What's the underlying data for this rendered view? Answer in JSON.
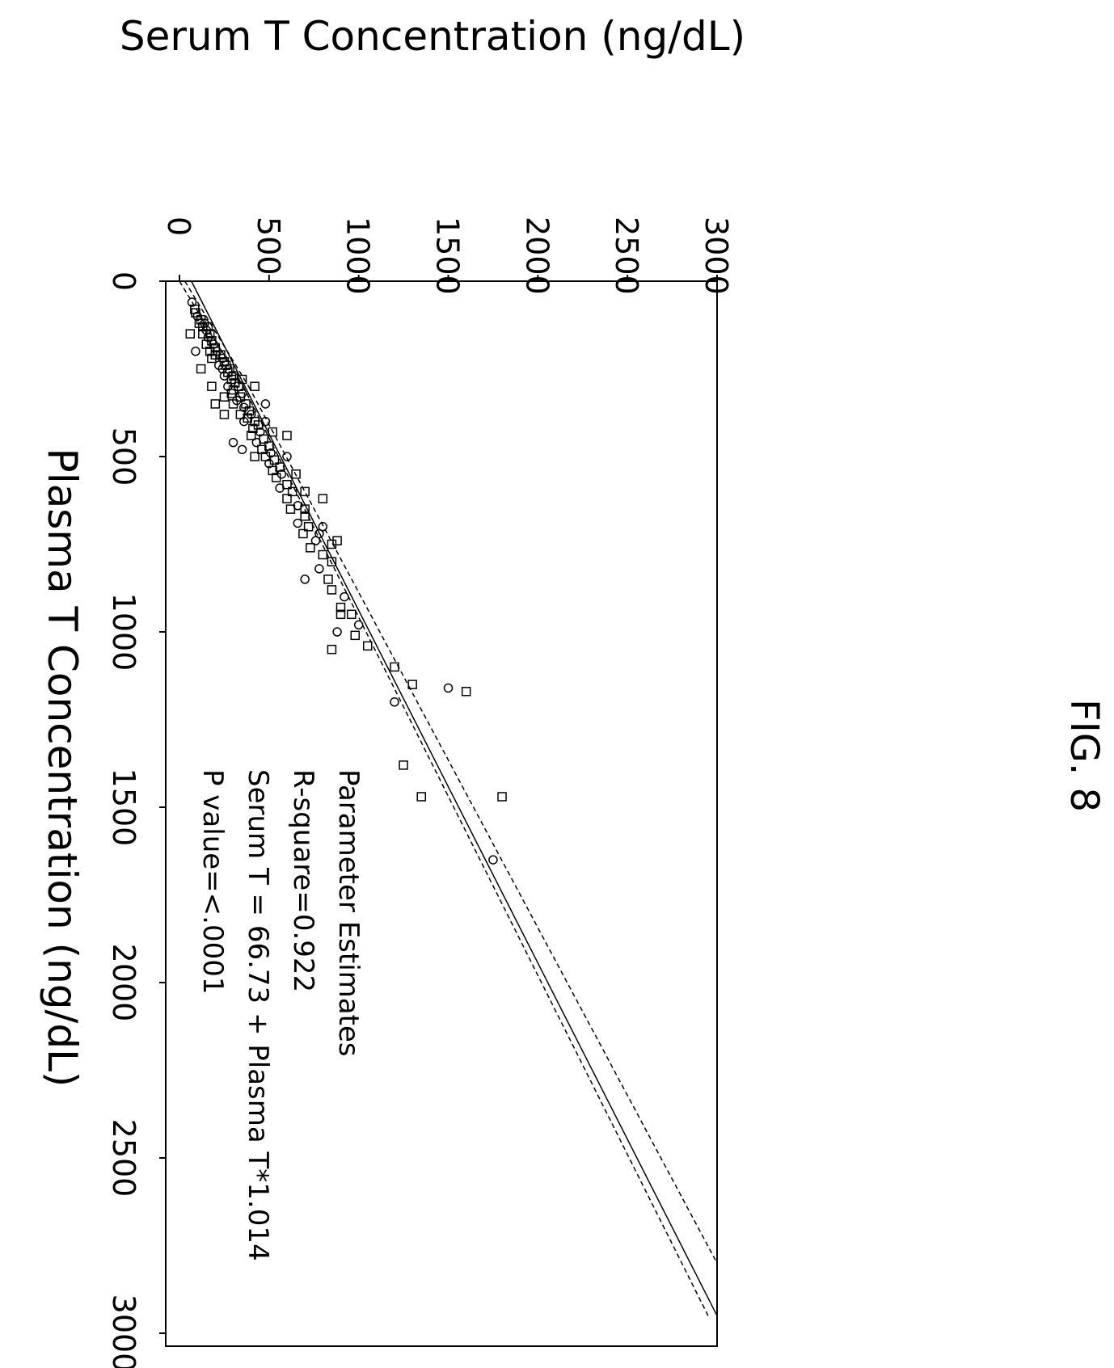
{
  "figure_label": "FIG. 8",
  "chart_data": {
    "type": "scatter",
    "orientation": "rotated 90° clockwise on the page",
    "title": "",
    "xlabel": "Plasma T Concentration (ng/dL)",
    "ylabel": "Serum T Concentration (ng/dL)",
    "xlim": [
      0,
      3000
    ],
    "ylim": [
      0,
      3000
    ],
    "x_ticks": [
      "0",
      "500",
      "1000",
      "1500",
      "2000",
      "2500",
      "3000"
    ],
    "y_ticks": [
      "0",
      "500",
      "1000",
      "1500",
      "2000",
      "2500",
      "3000"
    ],
    "grid": false,
    "legend": "none",
    "annotation": {
      "lines": [
        "Parameter Estimates",
        "R-square=0.922",
        "Serum T = 66.73 + Plasma T*1.014",
        "P value=<.0001"
      ]
    },
    "regression": {
      "intercept": 66.73,
      "slope": 1.014,
      "x_range": [
        0,
        2950
      ]
    },
    "confidence_band": {
      "lower_end": [
        2950,
        2950
      ],
      "upper_end": [
        2800,
        3000
      ],
      "pivot_x": 300
    },
    "points": [
      [
        60,
        70
      ],
      [
        80,
        85
      ],
      [
        90,
        90
      ],
      [
        100,
        100
      ],
      [
        110,
        120
      ],
      [
        120,
        110
      ],
      [
        120,
        140
      ],
      [
        130,
        130
      ],
      [
        130,
        160
      ],
      [
        140,
        150
      ],
      [
        150,
        130
      ],
      [
        150,
        170
      ],
      [
        160,
        160
      ],
      [
        170,
        180
      ],
      [
        180,
        150
      ],
      [
        180,
        190
      ],
      [
        190,
        200
      ],
      [
        200,
        170
      ],
      [
        200,
        210
      ],
      [
        210,
        230
      ],
      [
        210,
        200
      ],
      [
        220,
        240
      ],
      [
        220,
        180
      ],
      [
        230,
        250
      ],
      [
        240,
        220
      ],
      [
        240,
        260
      ],
      [
        250,
        280
      ],
      [
        250,
        240
      ],
      [
        260,
        270
      ],
      [
        270,
        300
      ],
      [
        270,
        250
      ],
      [
        280,
        290
      ],
      [
        290,
        310
      ],
      [
        300,
        270
      ],
      [
        300,
        330
      ],
      [
        310,
        300
      ],
      [
        320,
        350
      ],
      [
        320,
        290
      ],
      [
        330,
        340
      ],
      [
        340,
        320
      ],
      [
        350,
        370
      ],
      [
        350,
        300
      ],
      [
        360,
        360
      ],
      [
        370,
        390
      ],
      [
        380,
        340
      ],
      [
        380,
        400
      ],
      [
        390,
        380
      ],
      [
        400,
        420
      ],
      [
        400,
        360
      ],
      [
        410,
        440
      ],
      [
        420,
        410
      ],
      [
        430,
        450
      ],
      [
        440,
        400
      ],
      [
        450,
        470
      ],
      [
        460,
        430
      ],
      [
        470,
        500
      ],
      [
        480,
        460
      ],
      [
        490,
        510
      ],
      [
        500,
        480
      ],
      [
        510,
        530
      ],
      [
        520,
        500
      ],
      [
        530,
        560
      ],
      [
        540,
        520
      ],
      [
        550,
        570
      ],
      [
        560,
        540
      ],
      [
        580,
        600
      ],
      [
        590,
        560
      ],
      [
        600,
        630
      ],
      [
        620,
        600
      ],
      [
        640,
        660
      ],
      [
        650,
        620
      ],
      [
        670,
        700
      ],
      [
        690,
        660
      ],
      [
        700,
        720
      ],
      [
        720,
        690
      ],
      [
        740,
        760
      ],
      [
        760,
        730
      ],
      [
        780,
        800
      ],
      [
        820,
        780
      ],
      [
        850,
        830
      ],
      [
        880,
        850
      ],
      [
        900,
        920
      ],
      [
        930,
        900
      ],
      [
        950,
        960
      ],
      [
        980,
        1000
      ],
      [
        1010,
        980
      ],
      [
        1040,
        1050
      ],
      [
        480,
        350
      ],
      [
        500,
        420
      ],
      [
        380,
        250
      ],
      [
        460,
        300
      ],
      [
        300,
        180
      ],
      [
        250,
        120
      ],
      [
        200,
        90
      ],
      [
        150,
        60
      ],
      [
        600,
        700
      ],
      [
        700,
        800
      ],
      [
        750,
        850
      ],
      [
        800,
        850
      ],
      [
        850,
        700
      ],
      [
        1100,
        1200
      ],
      [
        1150,
        1300
      ],
      [
        1200,
        1200
      ],
      [
        1380,
        1250
      ],
      [
        1470,
        1350
      ],
      [
        1160,
        1500
      ],
      [
        1170,
        1600
      ],
      [
        1470,
        1800
      ],
      [
        1650,
        1750
      ],
      [
        1050,
        850
      ],
      [
        950,
        900
      ],
      [
        1000,
        880
      ],
      [
        620,
        800
      ],
      [
        740,
        880
      ],
      [
        350,
        480
      ],
      [
        430,
        520
      ],
      [
        440,
        600
      ],
      [
        500,
        600
      ],
      [
        300,
        420
      ],
      [
        350,
        200
      ],
      [
        400,
        480
      ],
      [
        550,
        650
      ],
      [
        650,
        700
      ],
      [
        720,
        780
      ],
      [
        330,
        250
      ],
      [
        280,
        350
      ]
    ]
  }
}
